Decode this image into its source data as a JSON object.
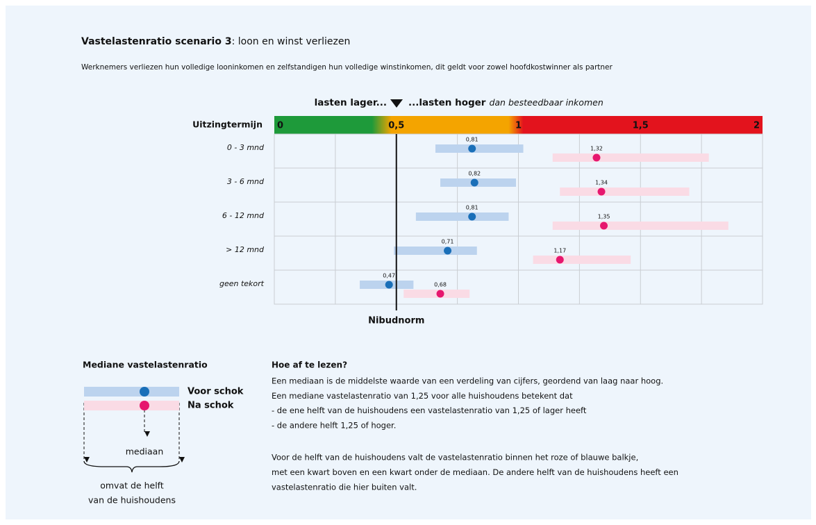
{
  "chart_data": {
    "type": "range-dot",
    "title": "Vastelastenratio scenario 3",
    "title_rest": ": loon en winst verliezen",
    "subtitle": "Werknemers verliezen hun volledige looninkomen en zelfstandigen hun volledige winstinkomen, dit geldt  voor zowel hoofdkostwinner als partner",
    "header_low": "lasten lager...",
    "header_high": "...lasten hoger",
    "header_note": "dan besteedbaar inkomen",
    "y_label": "Uitzingtermijn",
    "categories": [
      "0 - 3 mnd",
      "3 - 6 mnd",
      "6 - 12 mnd",
      "> 12 mnd",
      "geen tekort"
    ],
    "xlim": [
      0,
      2
    ],
    "xticks": [
      {
        "value": 0,
        "label": "0"
      },
      {
        "value": 0.5,
        "label": "0,5"
      },
      {
        "value": 1,
        "label": "1"
      },
      {
        "value": 1.5,
        "label": "1,5"
      },
      {
        "value": 2,
        "label": "2"
      }
    ],
    "xminor_ticks": [
      0.25,
      0.75,
      1.25,
      1.75
    ],
    "norm": 0.5,
    "norm_label": "Nibudnorm",
    "series": [
      {
        "name": "Voor schok",
        "color": "#1a6fb8",
        "bar_color": "#bcd3ee",
        "values": [
          0.81,
          0.82,
          0.81,
          0.71,
          0.47
        ],
        "value_labels": [
          "0,81",
          "0,82",
          "0,81",
          "0,71",
          "0,47"
        ],
        "low": [
          0.66,
          0.68,
          0.58,
          0.49,
          0.35
        ],
        "high": [
          1.02,
          0.99,
          0.96,
          0.83,
          0.57
        ]
      },
      {
        "name": "Na schok",
        "color": "#e6176e",
        "bar_color": "#fadbe5",
        "values": [
          1.32,
          1.34,
          1.35,
          1.17,
          0.68
        ],
        "value_labels": [
          "1,32",
          "1,34",
          "1,35",
          "1,17",
          "0,68"
        ],
        "low": [
          1.14,
          1.17,
          1.14,
          1.06,
          0.53
        ],
        "high": [
          1.78,
          1.7,
          1.86,
          1.46,
          0.8
        ]
      }
    ]
  },
  "legend_box": {
    "title": "Mediane vastelastenratio",
    "median": "mediaan",
    "span_lines": [
      "omvat de helft",
      "van de huishoudens"
    ]
  },
  "explanation": {
    "heading": "Hoe af te lezen?",
    "paragraphs": [
      [
        "Een mediaan is de middelste waarde van een verdeling van cijfers, geordend van laag naar hoog.",
        "Een mediane vastelastenratio van 1,25 voor alle huishoudens betekent dat",
        "- de ene helft van de huishoudens een vastelastenratio van 1,25 of lager heeft",
        "- de andere helft 1,25 of hoger."
      ],
      [
        "Voor de helft van de huishoudens valt de vastelastenratio binnen het roze of blauwe balkje,",
        "met een kwart boven en een kwart onder de mediaan. De andere helft van de huishoudens heeft een",
        "vastelastenratio die hier buiten valt."
      ]
    ]
  }
}
